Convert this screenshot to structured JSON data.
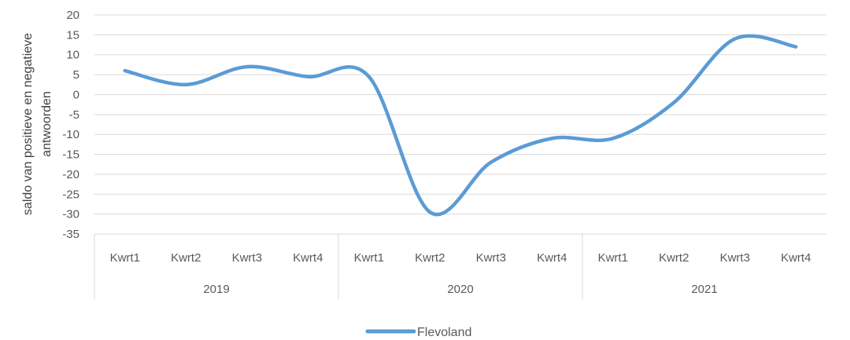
{
  "chart_data": {
    "type": "line",
    "ylabel": "saldo van positieve en negatieve antwoorden",
    "ylabel_lines": [
      "saldo van positieve en negatieve",
      "antwoorden"
    ],
    "ylim": [
      -35,
      20
    ],
    "ytick_step": 5,
    "grid": true,
    "legend_position": "bottom",
    "categories": [
      "Kwrt1",
      "Kwrt2",
      "Kwrt3",
      "Kwrt4",
      "Kwrt1",
      "Kwrt2",
      "Kwrt3",
      "Kwrt4",
      "Kwrt1",
      "Kwrt2",
      "Kwrt3",
      "Kwrt4"
    ],
    "groups": [
      {
        "label": "2019",
        "count": 4
      },
      {
        "label": "2020",
        "count": 4
      },
      {
        "label": "2021",
        "count": 4
      }
    ],
    "series": [
      {
        "name": "Flevoland",
        "color": "#5B9BD5",
        "values": [
          6,
          2.5,
          7,
          4.5,
          4.5,
          -29.5,
          -17,
          -11,
          -11,
          -2,
          14,
          12
        ]
      }
    ]
  }
}
